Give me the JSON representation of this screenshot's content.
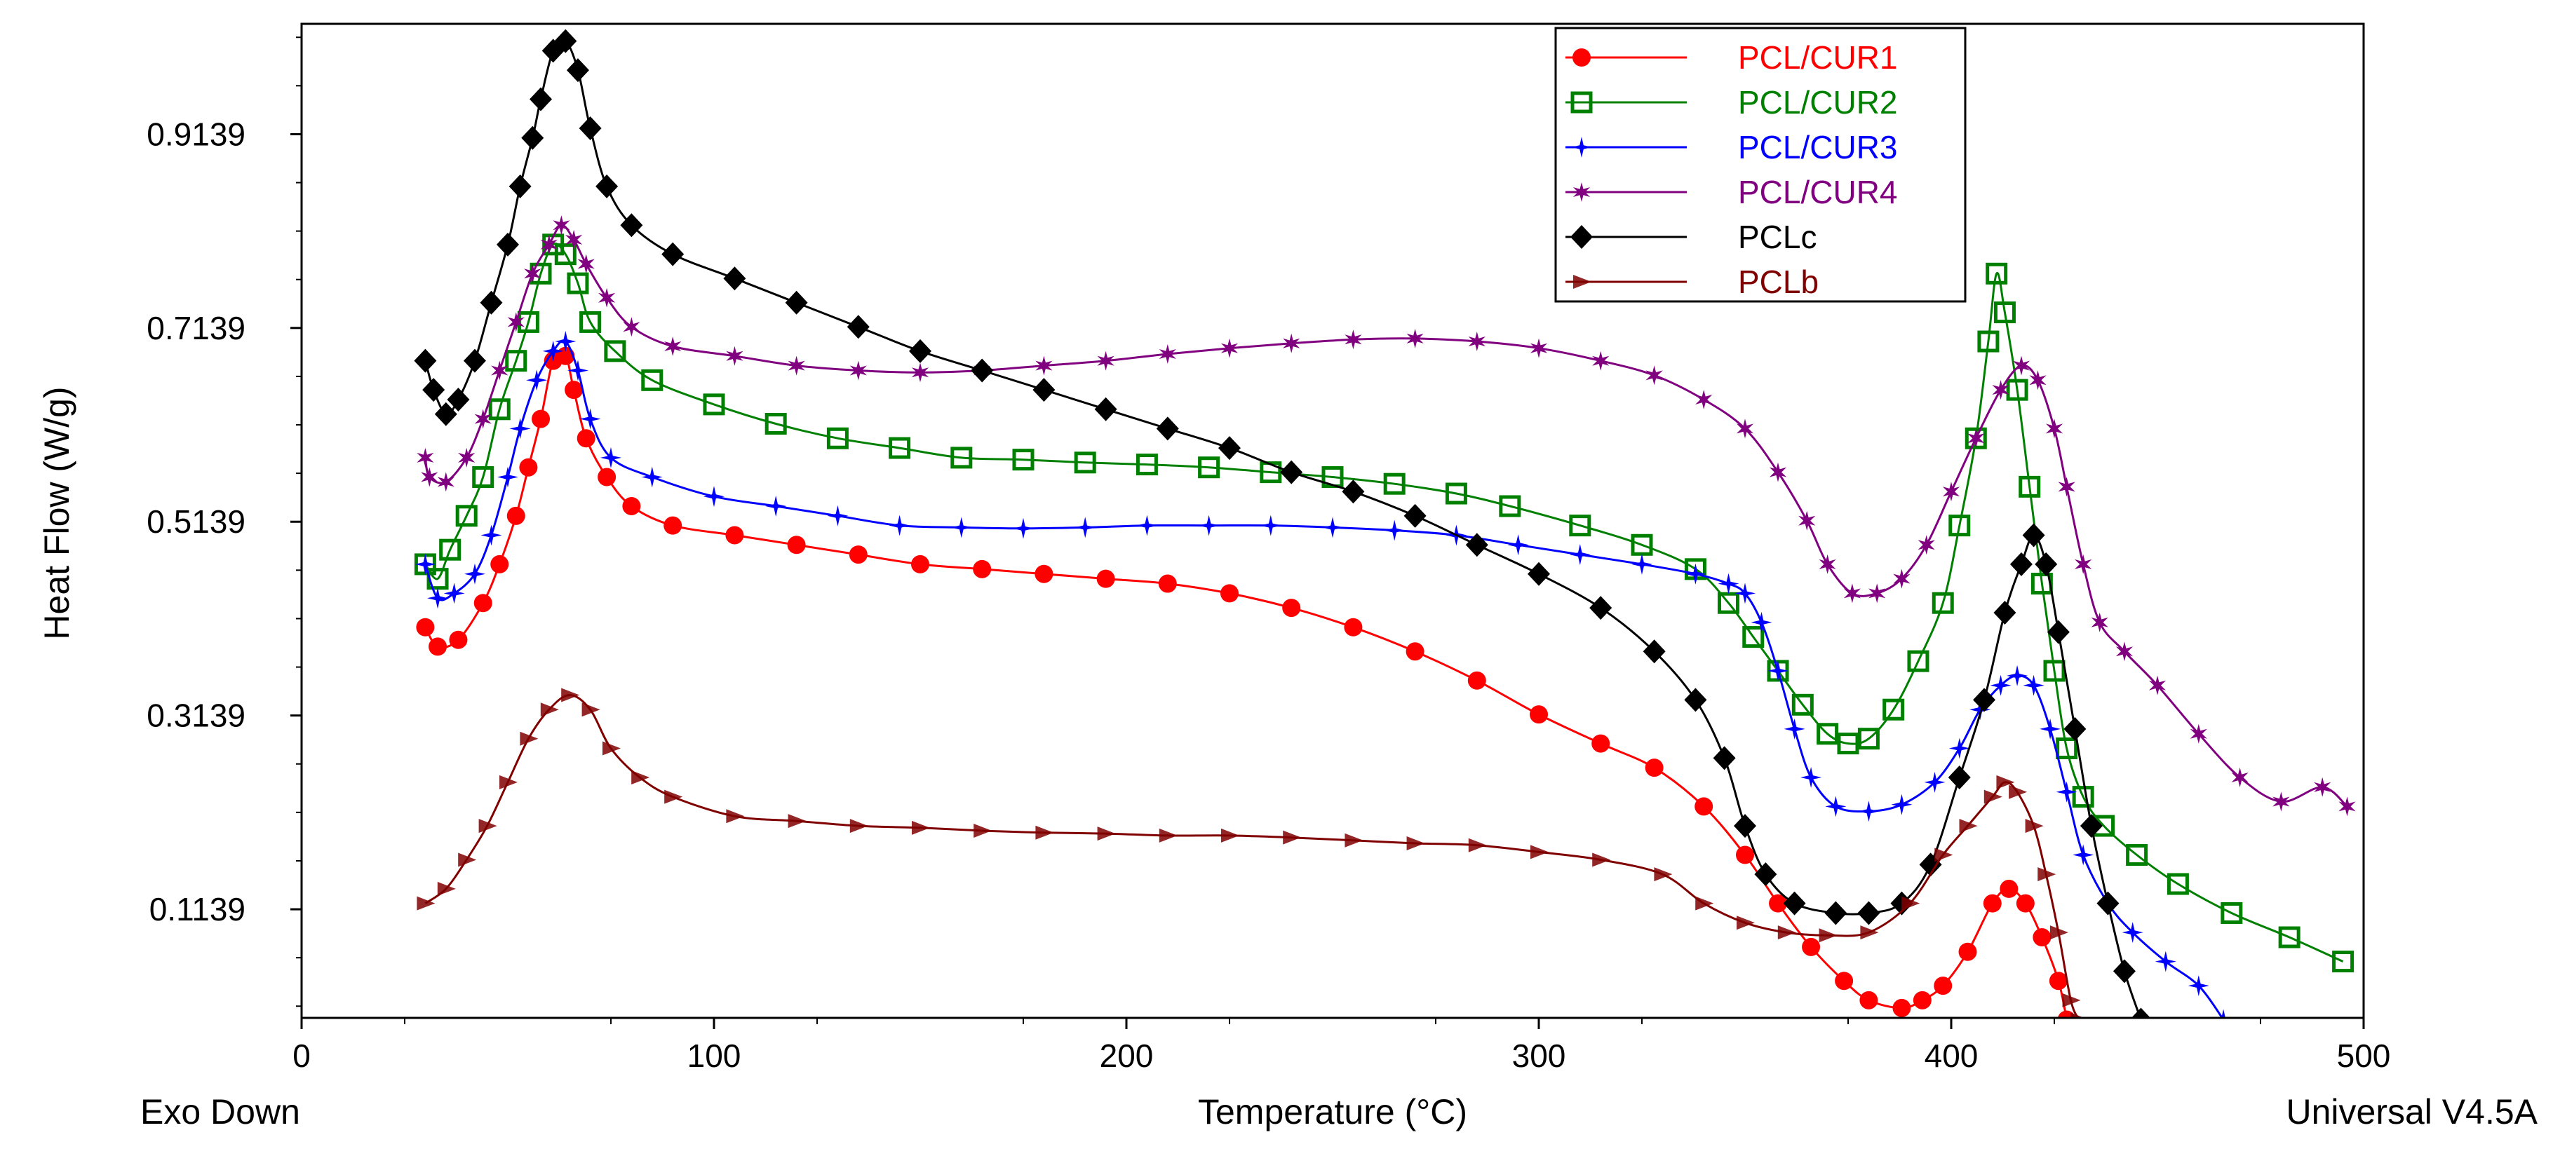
{
  "chart_data": {
    "type": "line",
    "xlabel": "Temperature (°C)",
    "ylabel": "Heat Flow (W/g)",
    "footer_left": "Exo Down",
    "footer_right": "Universal V4.5A",
    "xlim": [
      0,
      500
    ],
    "ylim": [
      0.0018,
      1.0278
    ],
    "x_ticks": [
      0,
      100,
      200,
      300,
      400,
      500
    ],
    "y_ticks": [
      0.1139,
      0.3139,
      0.5139,
      0.7139,
      0.9139
    ],
    "grid": false,
    "legend_position": "top-right",
    "series": [
      {
        "name": "PCL/CUR1",
        "color": "#ff0000",
        "marker": "circle",
        "points": [
          [
            30,
            0.405
          ],
          [
            33,
            0.385
          ],
          [
            38,
            0.392
          ],
          [
            44,
            0.43
          ],
          [
            48,
            0.47
          ],
          [
            52,
            0.52
          ],
          [
            55,
            0.57
          ],
          [
            58,
            0.62
          ],
          [
            61,
            0.68
          ],
          [
            64,
            0.685
          ],
          [
            66,
            0.65
          ],
          [
            69,
            0.6
          ],
          [
            74,
            0.56
          ],
          [
            80,
            0.53
          ],
          [
            90,
            0.51
          ],
          [
            105,
            0.5
          ],
          [
            120,
            0.49
          ],
          [
            135,
            0.48
          ],
          [
            150,
            0.47
          ],
          [
            165,
            0.465
          ],
          [
            180,
            0.46
          ],
          [
            195,
            0.455
          ],
          [
            210,
            0.45
          ],
          [
            225,
            0.44
          ],
          [
            240,
            0.425
          ],
          [
            255,
            0.405
          ],
          [
            270,
            0.38
          ],
          [
            285,
            0.35
          ],
          [
            300,
            0.315
          ],
          [
            315,
            0.285
          ],
          [
            328,
            0.26
          ],
          [
            340,
            0.22
          ],
          [
            350,
            0.17
          ],
          [
            358,
            0.12
          ],
          [
            366,
            0.075
          ],
          [
            374,
            0.04
          ],
          [
            380,
            0.02
          ],
          [
            388,
            0.012
          ],
          [
            393,
            0.02
          ],
          [
            398,
            0.035
          ],
          [
            404,
            0.07
          ],
          [
            410,
            0.12
          ],
          [
            414,
            0.135
          ],
          [
            418,
            0.12
          ],
          [
            422,
            0.085
          ],
          [
            426,
            0.04
          ],
          [
            428,
            0.0
          ]
        ]
      },
      {
        "name": "PCL/CUR2",
        "color": "#008000",
        "marker": "square",
        "points": [
          [
            30,
            0.47
          ],
          [
            33,
            0.455
          ],
          [
            36,
            0.485
          ],
          [
            40,
            0.52
          ],
          [
            44,
            0.56
          ],
          [
            48,
            0.63
          ],
          [
            52,
            0.68
          ],
          [
            55,
            0.72
          ],
          [
            58,
            0.77
          ],
          [
            61,
            0.8
          ],
          [
            64,
            0.79
          ],
          [
            67,
            0.76
          ],
          [
            70,
            0.72
          ],
          [
            76,
            0.69
          ],
          [
            85,
            0.66
          ],
          [
            100,
            0.635
          ],
          [
            115,
            0.615
          ],
          [
            130,
            0.6
          ],
          [
            145,
            0.59
          ],
          [
            160,
            0.58
          ],
          [
            175,
            0.578
          ],
          [
            190,
            0.575
          ],
          [
            205,
            0.573
          ],
          [
            220,
            0.57
          ],
          [
            235,
            0.565
          ],
          [
            250,
            0.56
          ],
          [
            265,
            0.553
          ],
          [
            280,
            0.543
          ],
          [
            293,
            0.53
          ],
          [
            310,
            0.51
          ],
          [
            325,
            0.49
          ],
          [
            338,
            0.465
          ],
          [
            346,
            0.43
          ],
          [
            352,
            0.395
          ],
          [
            358,
            0.36
          ],
          [
            364,
            0.325
          ],
          [
            370,
            0.295
          ],
          [
            375,
            0.285
          ],
          [
            380,
            0.29
          ],
          [
            386,
            0.32
          ],
          [
            392,
            0.37
          ],
          [
            398,
            0.43
          ],
          [
            402,
            0.51
          ],
          [
            406,
            0.6
          ],
          [
            409,
            0.7
          ],
          [
            411,
            0.77
          ],
          [
            413,
            0.73
          ],
          [
            416,
            0.65
          ],
          [
            419,
            0.55
          ],
          [
            422,
            0.45
          ],
          [
            425,
            0.36
          ],
          [
            428,
            0.28
          ],
          [
            432,
            0.23
          ],
          [
            437,
            0.2
          ],
          [
            445,
            0.17
          ],
          [
            455,
            0.14
          ],
          [
            468,
            0.11
          ],
          [
            482,
            0.085
          ],
          [
            495,
            0.06
          ]
        ]
      },
      {
        "name": "PCL/CUR3",
        "color": "#0000ff",
        "marker": "star4",
        "points": [
          [
            30,
            0.47
          ],
          [
            33,
            0.435
          ],
          [
            37,
            0.44
          ],
          [
            42,
            0.46
          ],
          [
            46,
            0.5
          ],
          [
            50,
            0.56
          ],
          [
            53,
            0.61
          ],
          [
            57,
            0.66
          ],
          [
            61,
            0.69
          ],
          [
            64,
            0.7
          ],
          [
            67,
            0.67
          ],
          [
            70,
            0.62
          ],
          [
            75,
            0.58
          ],
          [
            85,
            0.56
          ],
          [
            100,
            0.54
          ],
          [
            115,
            0.53
          ],
          [
            130,
            0.52
          ],
          [
            145,
            0.51
          ],
          [
            160,
            0.508
          ],
          [
            175,
            0.507
          ],
          [
            190,
            0.508
          ],
          [
            205,
            0.51
          ],
          [
            220,
            0.51
          ],
          [
            235,
            0.51
          ],
          [
            250,
            0.508
          ],
          [
            265,
            0.505
          ],
          [
            280,
            0.5
          ],
          [
            295,
            0.49
          ],
          [
            310,
            0.48
          ],
          [
            325,
            0.47
          ],
          [
            338,
            0.46
          ],
          [
            346,
            0.45
          ],
          [
            350,
            0.44
          ],
          [
            354,
            0.41
          ],
          [
            358,
            0.36
          ],
          [
            362,
            0.3
          ],
          [
            366,
            0.25
          ],
          [
            372,
            0.22
          ],
          [
            380,
            0.215
          ],
          [
            388,
            0.222
          ],
          [
            396,
            0.245
          ],
          [
            402,
            0.28
          ],
          [
            407,
            0.32
          ],
          [
            412,
            0.345
          ],
          [
            416,
            0.355
          ],
          [
            420,
            0.345
          ],
          [
            424,
            0.3
          ],
          [
            428,
            0.235
          ],
          [
            432,
            0.17
          ],
          [
            438,
            0.12
          ],
          [
            444,
            0.09
          ],
          [
            452,
            0.06
          ],
          [
            460,
            0.035
          ],
          [
            466,
            0.0
          ]
        ]
      },
      {
        "name": "PCL/CUR4",
        "color": "#800080",
        "marker": "star6",
        "points": [
          [
            30,
            0.58
          ],
          [
            31,
            0.56
          ],
          [
            35,
            0.555
          ],
          [
            40,
            0.58
          ],
          [
            44,
            0.62
          ],
          [
            48,
            0.67
          ],
          [
            52,
            0.72
          ],
          [
            56,
            0.77
          ],
          [
            60,
            0.8
          ],
          [
            63,
            0.82
          ],
          [
            66,
            0.805
          ],
          [
            69,
            0.78
          ],
          [
            74,
            0.745
          ],
          [
            80,
            0.715
          ],
          [
            90,
            0.695
          ],
          [
            105,
            0.685
          ],
          [
            120,
            0.675
          ],
          [
            135,
            0.67
          ],
          [
            150,
            0.668
          ],
          [
            165,
            0.67
          ],
          [
            180,
            0.675
          ],
          [
            195,
            0.68
          ],
          [
            210,
            0.687
          ],
          [
            225,
            0.693
          ],
          [
            240,
            0.698
          ],
          [
            255,
            0.702
          ],
          [
            270,
            0.703
          ],
          [
            285,
            0.7
          ],
          [
            300,
            0.693
          ],
          [
            315,
            0.68
          ],
          [
            328,
            0.665
          ],
          [
            340,
            0.64
          ],
          [
            350,
            0.61
          ],
          [
            358,
            0.565
          ],
          [
            365,
            0.515
          ],
          [
            370,
            0.47
          ],
          [
            376,
            0.44
          ],
          [
            382,
            0.44
          ],
          [
            388,
            0.455
          ],
          [
            394,
            0.49
          ],
          [
            400,
            0.545
          ],
          [
            406,
            0.6
          ],
          [
            412,
            0.65
          ],
          [
            417,
            0.675
          ],
          [
            421,
            0.66
          ],
          [
            425,
            0.61
          ],
          [
            428,
            0.55
          ],
          [
            432,
            0.47
          ],
          [
            436,
            0.41
          ],
          [
            442,
            0.38
          ],
          [
            450,
            0.345
          ],
          [
            460,
            0.295
          ],
          [
            470,
            0.25
          ],
          [
            480,
            0.225
          ],
          [
            490,
            0.24
          ],
          [
            496,
            0.22
          ]
        ]
      },
      {
        "name": "PCLc",
        "color": "#000000",
        "marker": "diamond",
        "points": [
          [
            30,
            0.68
          ],
          [
            32,
            0.65
          ],
          [
            35,
            0.625
          ],
          [
            38,
            0.64
          ],
          [
            42,
            0.68
          ],
          [
            46,
            0.74
          ],
          [
            50,
            0.8
          ],
          [
            53,
            0.86
          ],
          [
            56,
            0.91
          ],
          [
            58,
            0.95
          ],
          [
            61,
            1.0
          ],
          [
            64,
            1.01
          ],
          [
            67,
            0.98
          ],
          [
            70,
            0.92
          ],
          [
            74,
            0.86
          ],
          [
            80,
            0.82
          ],
          [
            90,
            0.79
          ],
          [
            105,
            0.765
          ],
          [
            120,
            0.74
          ],
          [
            135,
            0.715
          ],
          [
            150,
            0.69
          ],
          [
            165,
            0.67
          ],
          [
            180,
            0.65
          ],
          [
            195,
            0.63
          ],
          [
            210,
            0.61
          ],
          [
            225,
            0.59
          ],
          [
            240,
            0.565
          ],
          [
            255,
            0.545
          ],
          [
            270,
            0.52
          ],
          [
            285,
            0.49
          ],
          [
            300,
            0.46
          ],
          [
            315,
            0.425
          ],
          [
            328,
            0.38
          ],
          [
            338,
            0.33
          ],
          [
            345,
            0.27
          ],
          [
            350,
            0.2
          ],
          [
            355,
            0.15
          ],
          [
            362,
            0.12
          ],
          [
            372,
            0.11
          ],
          [
            380,
            0.11
          ],
          [
            388,
            0.12
          ],
          [
            395,
            0.16
          ],
          [
            402,
            0.25
          ],
          [
            408,
            0.33
          ],
          [
            413,
            0.42
          ],
          [
            417,
            0.47
          ],
          [
            420,
            0.5
          ],
          [
            423,
            0.47
          ],
          [
            426,
            0.4
          ],
          [
            430,
            0.3
          ],
          [
            434,
            0.2
          ],
          [
            438,
            0.12
          ],
          [
            442,
            0.05
          ],
          [
            446,
            0.0
          ]
        ]
      },
      {
        "name": "PCLb",
        "color": "#800000",
        "marker": "triangle-right",
        "points": [
          [
            30,
            0.12
          ],
          [
            35,
            0.135
          ],
          [
            40,
            0.165
          ],
          [
            45,
            0.2
          ],
          [
            50,
            0.245
          ],
          [
            55,
            0.29
          ],
          [
            60,
            0.32
          ],
          [
            65,
            0.335
          ],
          [
            70,
            0.32
          ],
          [
            75,
            0.28
          ],
          [
            82,
            0.25
          ],
          [
            90,
            0.23
          ],
          [
            105,
            0.21
          ],
          [
            120,
            0.205
          ],
          [
            135,
            0.2
          ],
          [
            150,
            0.198
          ],
          [
            165,
            0.195
          ],
          [
            180,
            0.193
          ],
          [
            195,
            0.192
          ],
          [
            210,
            0.19
          ],
          [
            225,
            0.19
          ],
          [
            240,
            0.188
          ],
          [
            255,
            0.185
          ],
          [
            270,
            0.182
          ],
          [
            285,
            0.18
          ],
          [
            300,
            0.173
          ],
          [
            315,
            0.165
          ],
          [
            330,
            0.15
          ],
          [
            340,
            0.12
          ],
          [
            350,
            0.1
          ],
          [
            360,
            0.09
          ],
          [
            370,
            0.087
          ],
          [
            380,
            0.09
          ],
          [
            390,
            0.12
          ],
          [
            398,
            0.17
          ],
          [
            404,
            0.2
          ],
          [
            410,
            0.23
          ],
          [
            413,
            0.245
          ],
          [
            416,
            0.235
          ],
          [
            420,
            0.2
          ],
          [
            423,
            0.15
          ],
          [
            426,
            0.09
          ],
          [
            429,
            0.02
          ],
          [
            431,
            0.0
          ]
        ]
      }
    ]
  }
}
